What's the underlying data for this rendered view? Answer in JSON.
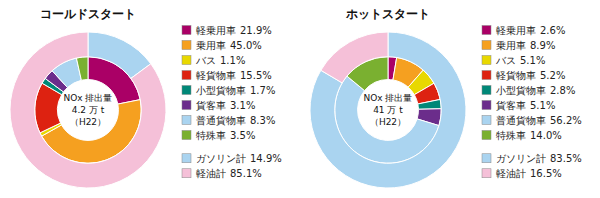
{
  "chart_data": [
    {
      "type": "pie",
      "title": "コールドスタート",
      "annotation": "NOx 排出量\n4.2 万 t\n（H22）",
      "legend": "right",
      "series": [
        {
          "categories": [
            "軽乗用車",
            "乗用車",
            "バス",
            "軽貨物車",
            "小型貨物車",
            "貨客車",
            "普通貨物車",
            "特殊車"
          ],
          "values": [
            21.9,
            45.0,
            1.1,
            15.5,
            1.7,
            3.1,
            8.3,
            3.5
          ],
          "value_labels": [
            "21.9%",
            "45.0%",
            "1.1%",
            "15.5%",
            "1.7%",
            "3.1%",
            "8.3%",
            "3.5%"
          ],
          "colors": [
            "#aa0066",
            "#f5a020",
            "#e8d800",
            "#dd2211",
            "#008878",
            "#6b2d8b",
            "#aad4f0",
            "#7ab030"
          ]
        },
        {
          "categories": [
            "ガソリン計",
            "軽油計"
          ],
          "values": [
            14.9,
            85.1
          ],
          "value_labels": [
            "14.9%",
            "85.1%"
          ],
          "colors": [
            "#aad4f0",
            "#f5c0d8"
          ]
        }
      ]
    },
    {
      "type": "pie",
      "title": "ホットスタート",
      "annotation": "NOx 排出量\n41 万 t\n（H22）",
      "legend": "right",
      "series": [
        {
          "categories": [
            "軽乗用車",
            "乗用車",
            "バス",
            "軽貨物車",
            "小型貨物車",
            "貨客車",
            "普通貨物車",
            "特殊車"
          ],
          "values": [
            2.6,
            8.9,
            5.1,
            5.2,
            2.8,
            5.1,
            56.2,
            14.0
          ],
          "value_labels": [
            "2.6%",
            "8.9%",
            "5.1%",
            "5.2%",
            "2.8%",
            "5.1%",
            "56.2%",
            "14.0%"
          ],
          "colors": [
            "#aa0066",
            "#f5a020",
            "#e8d800",
            "#dd2211",
            "#008878",
            "#6b2d8b",
            "#aad4f0",
            "#7ab030"
          ]
        },
        {
          "categories": [
            "ガソリン計",
            "軽油計"
          ],
          "values": [
            83.5,
            16.5
          ],
          "value_labels": [
            "83.5%",
            "16.5%"
          ],
          "colors": [
            "#aad4f0",
            "#f5c0d8"
          ]
        }
      ]
    }
  ]
}
